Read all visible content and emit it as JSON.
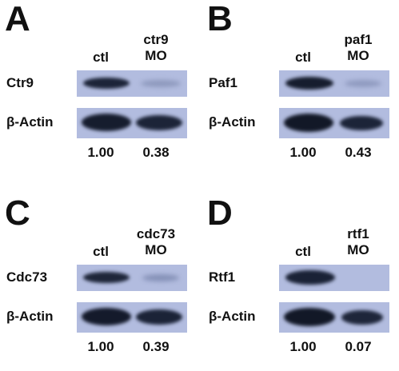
{
  "panels": [
    {
      "letter": "A",
      "target": "Ctr9",
      "mo_top": "ctr9",
      "mo_bottom": "MO",
      "ctl": "ctl",
      "actin": "β-Actin",
      "ctl_value": "1.00",
      "mo_value": "0.38"
    },
    {
      "letter": "B",
      "target": "Paf1",
      "mo_top": "paf1",
      "mo_bottom": "MO",
      "ctl": "ctl",
      "actin": "β-Actin",
      "ctl_value": "1.00",
      "mo_value": "0.43"
    },
    {
      "letter": "C",
      "target": "Cdc73",
      "mo_top": "cdc73",
      "mo_bottom": "MO",
      "ctl": "ctl",
      "actin": "β-Actin",
      "ctl_value": "1.00",
      "mo_value": "0.39"
    },
    {
      "letter": "D",
      "target": "Rtf1",
      "mo_top": "rtf1",
      "mo_bottom": "MO",
      "ctl": "ctl",
      "actin": "β-Actin",
      "ctl_value": "1.00",
      "mo_value": "0.07"
    }
  ],
  "colors": {
    "membrane": "#b2bcdf",
    "band": "#1a2236"
  }
}
